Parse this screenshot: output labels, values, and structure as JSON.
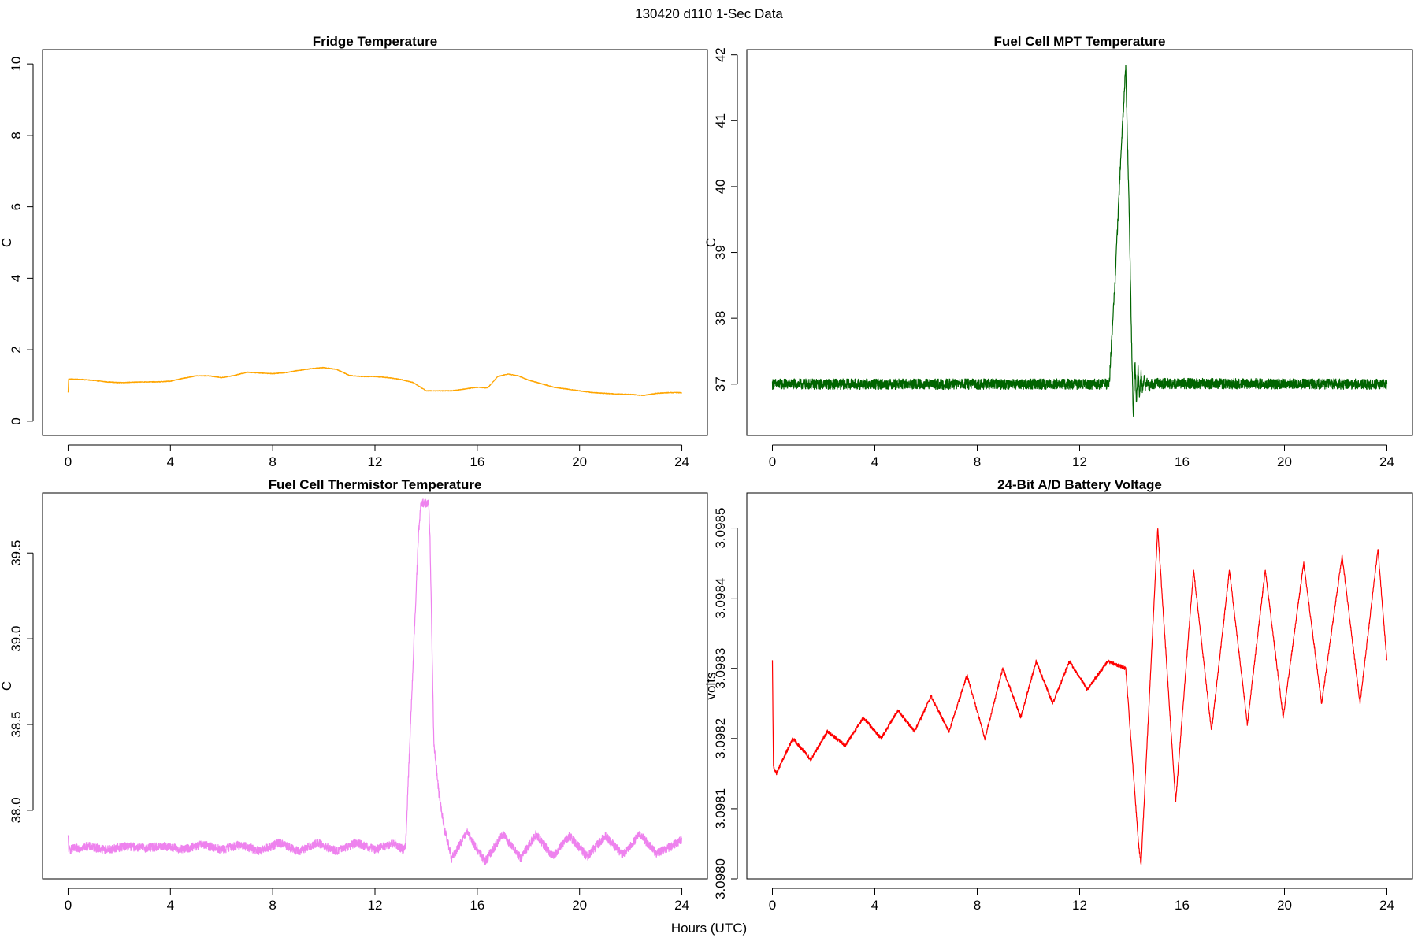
{
  "figure": {
    "title": "130420   d110   1-Sec Data",
    "xlabel": "Hours (UTC)"
  },
  "chart_data": [
    {
      "id": "fridge",
      "type": "line",
      "title": "Fridge Temperature",
      "xlabel": "",
      "ylabel": "C",
      "color": "#FFA500",
      "xlim": [
        -1,
        25
      ],
      "ylim": [
        -0.4,
        10.4
      ],
      "xticks": [
        0,
        4,
        8,
        12,
        16,
        20,
        24
      ],
      "yticks": [
        0,
        2,
        4,
        6,
        8,
        10
      ],
      "ytick_labels": [
        "0",
        "2",
        "4",
        "6",
        "8",
        "10"
      ],
      "noise": 0.01,
      "x": [
        0,
        0.02,
        0.05,
        0.5,
        1,
        1.5,
        2,
        2.5,
        3,
        3.5,
        4,
        4.5,
        5,
        5.5,
        6,
        6.5,
        7,
        7.5,
        8,
        8.5,
        9,
        9.5,
        10,
        10.5,
        11,
        11.5,
        12,
        12.5,
        13,
        13.5,
        14,
        14.5,
        15,
        15.5,
        16,
        16.4,
        16.8,
        17.2,
        17.6,
        18,
        18.5,
        19,
        19.5,
        20,
        20.5,
        21,
        21.5,
        22,
        22.5,
        23,
        23.5,
        24
      ],
      "y": [
        0.8,
        1.18,
        1.18,
        1.17,
        1.14,
        1.1,
        1.08,
        1.09,
        1.1,
        1.1,
        1.12,
        1.2,
        1.27,
        1.27,
        1.22,
        1.28,
        1.37,
        1.35,
        1.33,
        1.36,
        1.42,
        1.47,
        1.5,
        1.45,
        1.28,
        1.25,
        1.25,
        1.22,
        1.17,
        1.08,
        0.85,
        0.85,
        0.85,
        0.9,
        0.95,
        0.93,
        1.25,
        1.32,
        1.27,
        1.15,
        1.05,
        0.95,
        0.9,
        0.85,
        0.8,
        0.78,
        0.76,
        0.75,
        0.72,
        0.78,
        0.8,
        0.8
      ]
    },
    {
      "id": "mpt",
      "type": "line",
      "title": "Fuel Cell MPT Temperature",
      "xlabel": "",
      "ylabel": "C",
      "color": "#006400",
      "xlim": [
        -1,
        25
      ],
      "ylim": [
        36.22,
        42.08
      ],
      "xticks": [
        0,
        4,
        8,
        12,
        16,
        20,
        24
      ],
      "yticks": [
        37,
        38,
        39,
        40,
        41,
        42
      ],
      "ytick_labels": [
        "37",
        "38",
        "39",
        "40",
        "41",
        "42"
      ],
      "noise": 0.08,
      "x": [
        0,
        13.1,
        13.16,
        13.4,
        13.6,
        13.8,
        13.93,
        14.03,
        14.1,
        14.16,
        14.22,
        14.28,
        14.34,
        14.4,
        14.46,
        14.52,
        14.58,
        14.64,
        14.7,
        14.8,
        24
      ],
      "y": [
        37,
        37,
        37.03,
        38.7,
        40.4,
        41.82,
        39.7,
        37.6,
        36.45,
        37.38,
        36.7,
        37.27,
        36.82,
        37.17,
        36.88,
        37.1,
        36.93,
        37.06,
        36.96,
        37.01,
        37
      ]
    },
    {
      "id": "thermistor",
      "type": "line",
      "title": "Fuel Cell Thermistor Temperature",
      "xlabel": "",
      "ylabel": "C",
      "color": "#EE82EE",
      "xlim": [
        -1,
        25
      ],
      "ylim": [
        37.6,
        39.85
      ],
      "xticks": [
        0,
        4,
        8,
        12,
        16,
        20,
        24
      ],
      "yticks": [
        38.0,
        38.5,
        39.0,
        39.5
      ],
      "ytick_labels": [
        "38.0",
        "38.5",
        "39.0",
        "39.5"
      ],
      "noise": 0.025,
      "x": [
        0,
        0.03,
        0.06,
        0.75,
        1.5,
        2.25,
        3,
        3.75,
        4.5,
        5.25,
        6,
        6.75,
        7.5,
        8.25,
        9,
        9.75,
        10.5,
        11.25,
        12,
        12.75,
        13.1,
        13.2,
        13.5,
        13.7,
        13.8,
        13.85,
        14.1,
        14.15,
        14.3,
        14.5,
        14.7,
        15,
        15.6,
        16.3,
        17,
        17.7,
        18.3,
        18.95,
        19.6,
        20.3,
        21,
        21.7,
        22.35,
        23,
        23.6,
        24
      ],
      "y": [
        37.84,
        37.77,
        37.77,
        37.79,
        37.77,
        37.79,
        37.78,
        37.79,
        37.77,
        37.8,
        37.77,
        37.8,
        37.76,
        37.81,
        37.76,
        37.81,
        37.76,
        37.81,
        37.77,
        37.81,
        37.77,
        37.8,
        38.9,
        39.6,
        39.79,
        39.79,
        39.79,
        39.6,
        38.4,
        38.1,
        37.9,
        37.72,
        37.87,
        37.7,
        37.86,
        37.72,
        37.86,
        37.73,
        37.85,
        37.73,
        37.85,
        37.74,
        37.86,
        37.75,
        37.79,
        37.83
      ]
    },
    {
      "id": "battery",
      "type": "line",
      "title": "24-Bit A/D Battery Voltage",
      "xlabel": "",
      "ylabel": "volts",
      "color": "#FF0000",
      "xlim": [
        -1,
        25
      ],
      "ylim": [
        3.098,
        3.09855
      ],
      "xticks": [
        0,
        4,
        8,
        12,
        16,
        20,
        24
      ],
      "yticks": [
        3.098,
        3.0981,
        3.0982,
        3.0983,
        3.0984,
        3.0985
      ],
      "ytick_labels": [
        "3.0980",
        "3.0981",
        "3.0982",
        "3.0983",
        "3.0984",
        "3.0985"
      ],
      "noise": 2.5e-06,
      "x": [
        0,
        0.04,
        0.15,
        0.8,
        1.5,
        2.15,
        2.85,
        3.55,
        4.25,
        4.9,
        5.55,
        6.2,
        6.9,
        7.6,
        8.3,
        9,
        9.7,
        10.3,
        10.95,
        11.6,
        12.3,
        13.1,
        13.8,
        14.3,
        14.4,
        15.05,
        15.75,
        16.45,
        17.15,
        17.85,
        18.55,
        19.25,
        19.95,
        20.75,
        21.45,
        22.25,
        22.95,
        23.65,
        24
      ],
      "y": [
        3.09831,
        3.09816,
        3.09815,
        3.0982,
        3.09817,
        3.09821,
        3.09819,
        3.09823,
        3.0982,
        3.09824,
        3.09821,
        3.09826,
        3.09821,
        3.09829,
        3.0982,
        3.0983,
        3.09823,
        3.09831,
        3.09825,
        3.09831,
        3.09827,
        3.09831,
        3.0983,
        3.09805,
        3.09802,
        3.0985,
        3.09811,
        3.09844,
        3.09821,
        3.09844,
        3.09822,
        3.09844,
        3.09823,
        3.09845,
        3.09825,
        3.09846,
        3.09825,
        3.09847,
        3.09831
      ]
    }
  ]
}
